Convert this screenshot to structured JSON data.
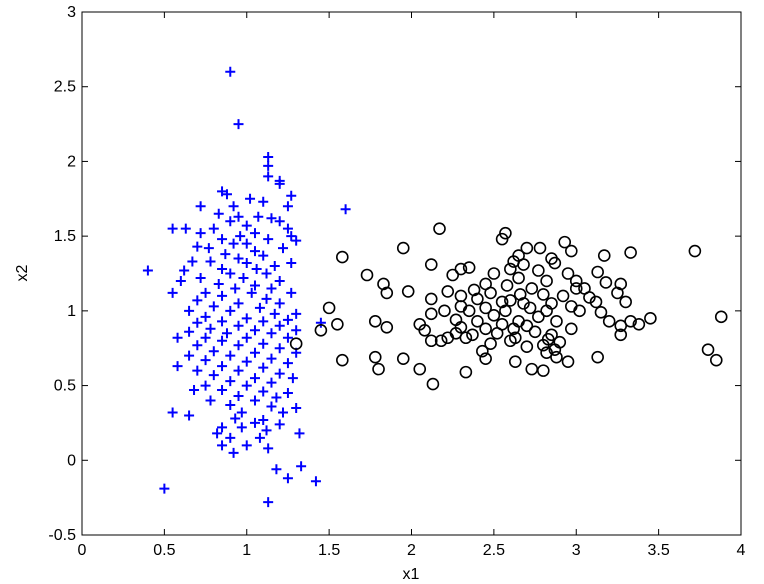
{
  "chart_data": {
    "type": "scatter",
    "xlabel": "x1",
    "ylabel": "x2",
    "xlim": [
      0,
      4
    ],
    "ylim": [
      -0.5,
      3
    ],
    "xticks": [
      "0",
      "0.5",
      "1",
      "1.5",
      "2",
      "2.5",
      "3",
      "3.5",
      "4"
    ],
    "yticks": [
      "-0.5",
      "0",
      "0.5",
      "1",
      "1.5",
      "2",
      "2.5",
      "3"
    ],
    "grid": false,
    "series": [
      {
        "marker": "plus",
        "color": "#0000ff",
        "points": [
          [
            0.9,
            2.6
          ],
          [
            0.95,
            2.25
          ],
          [
            1.13,
            2.03
          ],
          [
            1.13,
            1.97
          ],
          [
            1.13,
            1.9
          ],
          [
            1.2,
            1.87
          ],
          [
            1.2,
            1.85
          ],
          [
            0.85,
            1.8
          ],
          [
            0.88,
            1.78
          ],
          [
            1.27,
            1.77
          ],
          [
            1.02,
            1.75
          ],
          [
            1.1,
            1.73
          ],
          [
            0.72,
            1.7
          ],
          [
            0.92,
            1.7
          ],
          [
            1.25,
            1.7
          ],
          [
            1.6,
            1.68
          ],
          [
            0.83,
            1.65
          ],
          [
            0.95,
            1.63
          ],
          [
            1.07,
            1.63
          ],
          [
            1.15,
            1.62
          ],
          [
            0.9,
            1.6
          ],
          [
            1.2,
            1.6
          ],
          [
            0.55,
            1.55
          ],
          [
            0.63,
            1.55
          ],
          [
            0.8,
            1.55
          ],
          [
            1.0,
            1.57
          ],
          [
            1.25,
            1.55
          ],
          [
            0.72,
            1.52
          ],
          [
            0.96,
            1.5
          ],
          [
            1.05,
            1.52
          ],
          [
            1.27,
            1.5
          ],
          [
            0.85,
            1.48
          ],
          [
            1.13,
            1.48
          ],
          [
            1.3,
            1.47
          ],
          [
            0.7,
            1.43
          ],
          [
            0.92,
            1.45
          ],
          [
            1.0,
            1.45
          ],
          [
            0.77,
            1.42
          ],
          [
            1.05,
            1.4
          ],
          [
            1.22,
            1.42
          ],
          [
            0.87,
            1.38
          ],
          [
            0.95,
            1.35
          ],
          [
            1.1,
            1.37
          ],
          [
            0.67,
            1.33
          ],
          [
            0.78,
            1.33
          ],
          [
            1.0,
            1.32
          ],
          [
            1.27,
            1.32
          ],
          [
            1.17,
            1.3
          ],
          [
            0.85,
            1.28
          ],
          [
            1.06,
            1.28
          ],
          [
            0.4,
            1.27
          ],
          [
            0.62,
            1.27
          ],
          [
            0.9,
            1.25
          ],
          [
            1.12,
            1.25
          ],
          [
            0.72,
            1.22
          ],
          [
            0.98,
            1.22
          ],
          [
            1.2,
            1.2
          ],
          [
            0.6,
            1.2
          ],
          [
            0.83,
            1.18
          ],
          [
            1.05,
            1.17
          ],
          [
            0.93,
            1.15
          ],
          [
            1.15,
            1.15
          ],
          [
            0.75,
            1.12
          ],
          [
            0.55,
            1.12
          ],
          [
            1.03,
            1.12
          ],
          [
            1.27,
            1.12
          ],
          [
            0.85,
            1.1
          ],
          [
            1.12,
            1.08
          ],
          [
            0.7,
            1.07
          ],
          [
            0.95,
            1.05
          ],
          [
            1.2,
            1.05
          ],
          [
            0.8,
            1.03
          ],
          [
            1.08,
            1.02
          ],
          [
            0.65,
            1.0
          ],
          [
            0.9,
            1.0
          ],
          [
            1.17,
            0.98
          ],
          [
            1.3,
            0.98
          ],
          [
            0.75,
            0.96
          ],
          [
            1.0,
            0.95
          ],
          [
            1.25,
            0.94
          ],
          [
            0.85,
            0.93
          ],
          [
            1.1,
            0.93
          ],
          [
            0.7,
            0.92
          ],
          [
            0.95,
            0.9
          ],
          [
            1.2,
            0.9
          ],
          [
            1.45,
            0.92
          ],
          [
            0.78,
            0.88
          ],
          [
            1.05,
            0.87
          ],
          [
            1.3,
            0.87
          ],
          [
            0.65,
            0.86
          ],
          [
            0.88,
            0.85
          ],
          [
            1.15,
            0.85
          ],
          [
            0.58,
            0.82
          ],
          [
            0.75,
            0.82
          ],
          [
            1.0,
            0.82
          ],
          [
            1.25,
            0.82
          ],
          [
            0.85,
            0.8
          ],
          [
            1.1,
            0.78
          ],
          [
            0.7,
            0.77
          ],
          [
            0.95,
            0.77
          ],
          [
            1.2,
            0.75
          ],
          [
            0.8,
            0.73
          ],
          [
            1.05,
            0.72
          ],
          [
            1.3,
            0.72
          ],
          [
            0.65,
            0.7
          ],
          [
            0.9,
            0.7
          ],
          [
            1.15,
            0.68
          ],
          [
            0.75,
            0.67
          ],
          [
            1.0,
            0.66
          ],
          [
            1.25,
            0.65
          ],
          [
            0.58,
            0.63
          ],
          [
            0.85,
            0.63
          ],
          [
            1.1,
            0.62
          ],
          [
            0.7,
            0.6
          ],
          [
            0.95,
            0.6
          ],
          [
            1.2,
            0.58
          ],
          [
            0.8,
            0.57
          ],
          [
            1.05,
            0.55
          ],
          [
            1.28,
            0.55
          ],
          [
            0.9,
            0.53
          ],
          [
            1.15,
            0.52
          ],
          [
            0.75,
            0.5
          ],
          [
            1.0,
            0.5
          ],
          [
            0.68,
            0.47
          ],
          [
            0.85,
            0.47
          ],
          [
            1.1,
            0.46
          ],
          [
            1.25,
            0.45
          ],
          [
            0.95,
            0.43
          ],
          [
            1.18,
            0.42
          ],
          [
            0.78,
            0.4
          ],
          [
            1.05,
            0.4
          ],
          [
            0.9,
            0.37
          ],
          [
            1.15,
            0.36
          ],
          [
            1.3,
            0.35
          ],
          [
            0.97,
            0.32
          ],
          [
            1.22,
            0.32
          ],
          [
            0.55,
            0.32
          ],
          [
            0.65,
            0.3
          ],
          [
            0.93,
            0.28
          ],
          [
            1.1,
            0.27
          ],
          [
            1.05,
            0.25
          ],
          [
            1.2,
            0.24
          ],
          [
            0.85,
            0.22
          ],
          [
            0.97,
            0.22
          ],
          [
            1.12,
            0.2
          ],
          [
            1.32,
            0.18
          ],
          [
            0.82,
            0.18
          ],
          [
            0.9,
            0.15
          ],
          [
            1.08,
            0.15
          ],
          [
            0.85,
            0.1
          ],
          [
            1.0,
            0.1
          ],
          [
            1.13,
            0.08
          ],
          [
            0.92,
            0.05
          ],
          [
            1.18,
            -0.06
          ],
          [
            1.33,
            -0.04
          ],
          [
            1.25,
            -0.12
          ],
          [
            1.42,
            -0.14
          ],
          [
            0.5,
            -0.19
          ],
          [
            1.13,
            -0.28
          ]
        ]
      },
      {
        "marker": "circle",
        "color": "#000000",
        "points": [
          [
            2.57,
            1.52
          ],
          [
            2.55,
            1.48
          ],
          [
            2.17,
            1.55
          ],
          [
            2.93,
            1.46
          ],
          [
            1.95,
            1.42
          ],
          [
            2.7,
            1.42
          ],
          [
            2.78,
            1.42
          ],
          [
            2.97,
            1.4
          ],
          [
            3.33,
            1.39
          ],
          [
            3.72,
            1.4
          ],
          [
            1.58,
            1.36
          ],
          [
            2.65,
            1.37
          ],
          [
            2.85,
            1.35
          ],
          [
            3.17,
            1.37
          ],
          [
            2.62,
            1.33
          ],
          [
            2.68,
            1.31
          ],
          [
            2.87,
            1.32
          ],
          [
            2.12,
            1.31
          ],
          [
            2.3,
            1.28
          ],
          [
            2.35,
            1.29
          ],
          [
            2.6,
            1.28
          ],
          [
            2.77,
            1.27
          ],
          [
            2.5,
            1.25
          ],
          [
            2.95,
            1.25
          ],
          [
            3.13,
            1.26
          ],
          [
            1.73,
            1.24
          ],
          [
            2.25,
            1.24
          ],
          [
            2.65,
            1.22
          ],
          [
            2.82,
            1.2
          ],
          [
            3.0,
            1.2
          ],
          [
            3.18,
            1.19
          ],
          [
            3.27,
            1.18
          ],
          [
            1.83,
            1.18
          ],
          [
            2.45,
            1.18
          ],
          [
            2.58,
            1.17
          ],
          [
            2.73,
            1.15
          ],
          [
            3.0,
            1.15
          ],
          [
            3.05,
            1.15
          ],
          [
            2.38,
            1.14
          ],
          [
            2.22,
            1.13
          ],
          [
            1.85,
            1.12
          ],
          [
            1.98,
            1.13
          ],
          [
            2.48,
            1.12
          ],
          [
            2.66,
            1.11
          ],
          [
            2.8,
            1.11
          ],
          [
            3.25,
            1.12
          ],
          [
            2.3,
            1.1
          ],
          [
            2.92,
            1.1
          ],
          [
            3.08,
            1.09
          ],
          [
            2.12,
            1.08
          ],
          [
            2.4,
            1.08
          ],
          [
            2.6,
            1.07
          ],
          [
            2.55,
            1.06
          ],
          [
            2.68,
            1.05
          ],
          [
            2.85,
            1.05
          ],
          [
            3.12,
            1.06
          ],
          [
            3.3,
            1.06
          ],
          [
            2.3,
            1.03
          ],
          [
            2.45,
            1.02
          ],
          [
            2.72,
            1.02
          ],
          [
            2.97,
            1.03
          ],
          [
            1.5,
            1.02
          ],
          [
            2.2,
            1.0
          ],
          [
            2.35,
            1.0
          ],
          [
            2.57,
            1.0
          ],
          [
            2.82,
            1.0
          ],
          [
            3.02,
            1.0
          ],
          [
            3.15,
            0.99
          ],
          [
            2.12,
            0.98
          ],
          [
            2.5,
            0.97
          ],
          [
            2.77,
            0.96
          ],
          [
            3.45,
            0.95
          ],
          [
            3.88,
            0.96
          ],
          [
            1.78,
            0.93
          ],
          [
            2.27,
            0.94
          ],
          [
            2.4,
            0.93
          ],
          [
            2.65,
            0.93
          ],
          [
            2.88,
            0.93
          ],
          [
            3.2,
            0.93
          ],
          [
            3.33,
            0.93
          ],
          [
            2.05,
            0.91
          ],
          [
            2.55,
            0.91
          ],
          [
            2.7,
            0.9
          ],
          [
            3.27,
            0.9
          ],
          [
            3.38,
            0.91
          ],
          [
            1.55,
            0.91
          ],
          [
            1.85,
            0.89
          ],
          [
            2.3,
            0.89
          ],
          [
            2.45,
            0.88
          ],
          [
            2.62,
            0.88
          ],
          [
            2.97,
            0.88
          ],
          [
            1.45,
            0.87
          ],
          [
            2.08,
            0.87
          ],
          [
            2.27,
            0.85
          ],
          [
            2.52,
            0.85
          ],
          [
            2.75,
            0.86
          ],
          [
            2.37,
            0.84
          ],
          [
            2.85,
            0.84
          ],
          [
            3.27,
            0.84
          ],
          [
            2.22,
            0.82
          ],
          [
            2.33,
            0.82
          ],
          [
            2.63,
            0.82
          ],
          [
            2.83,
            0.81
          ],
          [
            2.12,
            0.8
          ],
          [
            2.18,
            0.8
          ],
          [
            2.6,
            0.8
          ],
          [
            2.9,
            0.79
          ],
          [
            1.3,
            0.78
          ],
          [
            2.48,
            0.78
          ],
          [
            2.8,
            0.77
          ],
          [
            2.7,
            0.76
          ],
          [
            2.87,
            0.74
          ],
          [
            3.8,
            0.74
          ],
          [
            2.43,
            0.73
          ],
          [
            2.82,
            0.72
          ],
          [
            1.78,
            0.69
          ],
          [
            1.95,
            0.68
          ],
          [
            2.45,
            0.68
          ],
          [
            2.88,
            0.69
          ],
          [
            3.13,
            0.69
          ],
          [
            1.58,
            0.67
          ],
          [
            3.85,
            0.67
          ],
          [
            2.63,
            0.66
          ],
          [
            2.95,
            0.66
          ],
          [
            2.73,
            0.61
          ],
          [
            2.8,
            0.6
          ],
          [
            1.8,
            0.61
          ],
          [
            2.05,
            0.61
          ],
          [
            2.33,
            0.59
          ],
          [
            2.13,
            0.51
          ]
        ]
      }
    ]
  }
}
